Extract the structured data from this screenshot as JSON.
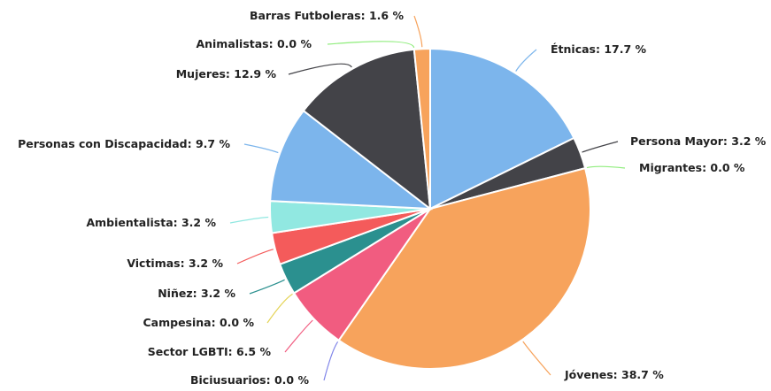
{
  "chart_data": {
    "type": "pie",
    "title": "",
    "slices": [
      {
        "label": "Étnicas",
        "value": 17.7,
        "display": "Étnicas: 17.7 %",
        "color": "#7cb5ec"
      },
      {
        "label": "Persona Mayor",
        "value": 3.2,
        "display": "Persona Mayor: 3.2 %",
        "color": "#434348"
      },
      {
        "label": "Migrantes",
        "value": 0.0,
        "display": "Migrantes: 0.0 %",
        "color": "#90ed7d"
      },
      {
        "label": "Jóvenes",
        "value": 38.7,
        "display": "Jóvenes: 38.7 %",
        "color": "#f7a35c"
      },
      {
        "label": "Biciusuarios",
        "value": 0.0,
        "display": "Biciusuarios: 0.0 %",
        "color": "#8085e9"
      },
      {
        "label": "Sector LGBTI",
        "value": 6.5,
        "display": "Sector LGBTI: 6.5 %",
        "color": "#f15c80"
      },
      {
        "label": "Campesina",
        "value": 0.0,
        "display": "Campesina: 0.0 %",
        "color": "#e4d354"
      },
      {
        "label": "Niñez",
        "value": 3.2,
        "display": "Niñez: 3.2 %",
        "color": "#2b908f"
      },
      {
        "label": "Victimas",
        "value": 3.2,
        "display": "Victimas: 3.2 %",
        "color": "#f45b5b"
      },
      {
        "label": "Ambientalista",
        "value": 3.2,
        "display": "Ambientalista: 3.2 %",
        "color": "#91e8e1"
      },
      {
        "label": "Personas con Discapacidad",
        "value": 9.7,
        "display": "Personas con Discapacidad: 9.7 %",
        "color": "#7cb5ec"
      },
      {
        "label": "Mujeres",
        "value": 12.9,
        "display": "Mujeres: 12.9 %",
        "color": "#434348"
      },
      {
        "label": "Animalistas",
        "value": 0.0,
        "display": "Animalistas: 0.0 %",
        "color": "#90ed7d"
      },
      {
        "label": "Barras Futboleras",
        "value": 1.6,
        "display": "Barras Futboleras: 1.6 %",
        "color": "#f7a35c"
      }
    ]
  }
}
